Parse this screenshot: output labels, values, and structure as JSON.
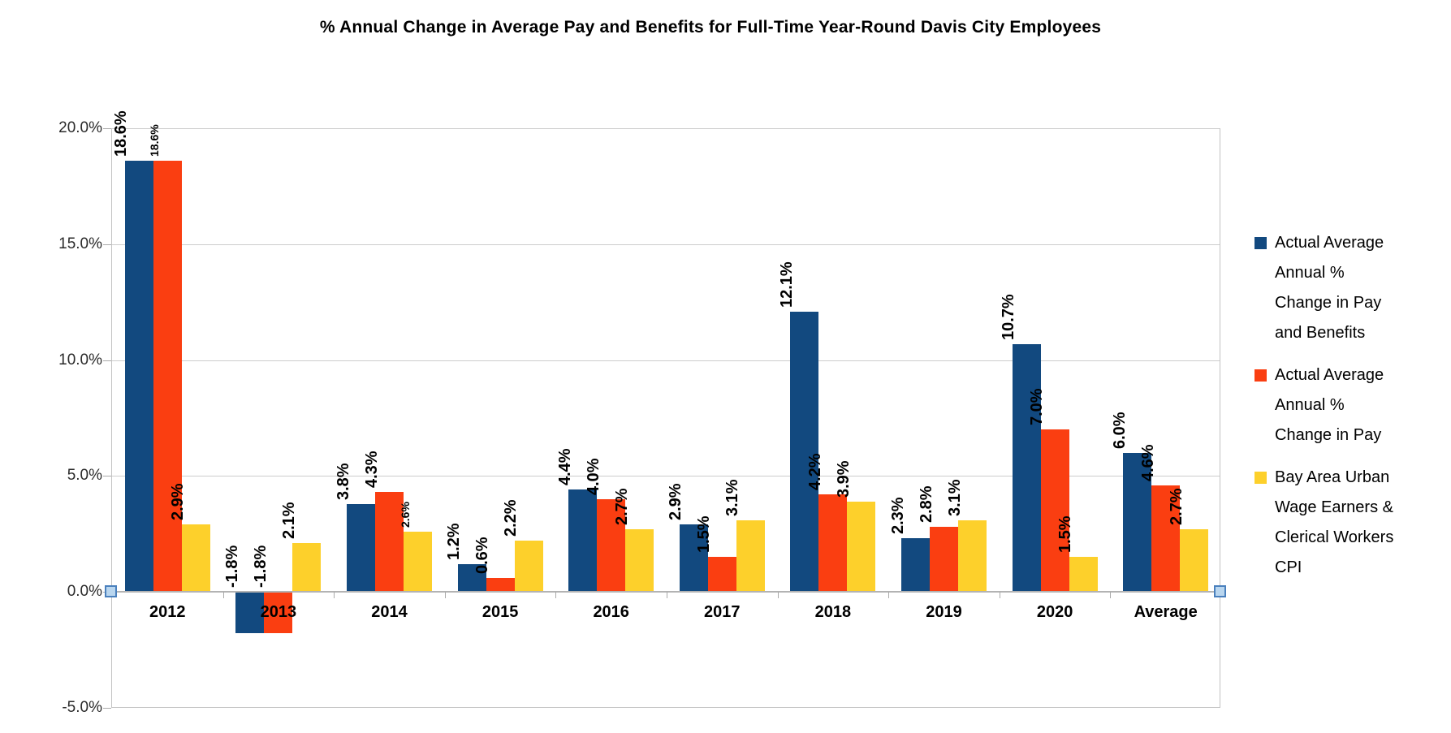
{
  "chart_data": {
    "type": "bar",
    "title": "% Annual Change in Average Pay and Benefits for Full-Time Year-Round Davis City Employees",
    "categories": [
      "2012",
      "2013",
      "2014",
      "2015",
      "2016",
      "2017",
      "2018",
      "2019",
      "2020",
      "Average"
    ],
    "series": [
      {
        "name": "Actual Average Annual % Change in Pay and Benefits",
        "legend_lines": [
          "Actual Average",
          "Annual %",
          "Change in Pay",
          "and Benefits"
        ],
        "color": "#12497F",
        "values": [
          18.6,
          -1.8,
          3.8,
          1.2,
          4.4,
          2.9,
          12.1,
          2.3,
          10.7,
          6.0
        ],
        "labels": [
          "18.6%",
          "-1.8%",
          "3.8%",
          "1.2%",
          "4.4%",
          "2.9%",
          "12.1%",
          "2.3%",
          "10.7%",
          "6.0%"
        ],
        "small_label": [
          false,
          false,
          false,
          false,
          false,
          false,
          false,
          false,
          false,
          false
        ]
      },
      {
        "name": "Actual Average Annual % Change in Pay",
        "legend_lines": [
          "Actual Average",
          "Annual %",
          "Change in Pay"
        ],
        "color": "#FA3E11",
        "values": [
          18.6,
          -1.8,
          4.3,
          0.6,
          4.0,
          1.5,
          4.2,
          2.8,
          7.0,
          4.6
        ],
        "labels": [
          "18.6%",
          "-1.8%",
          "4.3%",
          "0.6%",
          "4.0%",
          "1.5%",
          "4.2%",
          "2.8%",
          "7.0%",
          "4.6%"
        ],
        "small_label": [
          true,
          false,
          false,
          false,
          false,
          false,
          false,
          false,
          false,
          false
        ]
      },
      {
        "name": "Bay Area Urban Wage Earners & Clerical Workers CPI",
        "legend_lines": [
          "Bay Area Urban",
          "Wage Earners &",
          "Clerical Workers",
          "CPI"
        ],
        "color": "#FDD02B",
        "values": [
          2.9,
          2.1,
          2.6,
          2.2,
          2.7,
          3.1,
          3.9,
          3.1,
          1.5,
          2.7
        ],
        "labels": [
          "2.9%",
          "2.1%",
          "2.6%",
          "2.2%",
          "2.7%",
          "3.1%",
          "3.9%",
          "3.1%",
          "1.5%",
          "2.7%"
        ],
        "small_label": [
          false,
          false,
          true,
          false,
          false,
          false,
          false,
          false,
          false,
          false
        ]
      }
    ],
    "y_axis": {
      "min": -5,
      "max": 20,
      "tick_step": 5,
      "tick_values": [
        20,
        15,
        10,
        5,
        0,
        -5
      ],
      "tick_labels": [
        "20.0%",
        "15.0%",
        "10.0%",
        "5.0%",
        "0.0%",
        "-5.0%"
      ]
    },
    "grid": true,
    "legend_position": "right",
    "axis_selection_handles": true,
    "colors": {
      "gridline": "#CCCCCC",
      "axis": "#B3B3B3",
      "handle_fill": "#B9D6EF",
      "handle_border": "#4A80BD",
      "label_text": "#000000"
    }
  }
}
